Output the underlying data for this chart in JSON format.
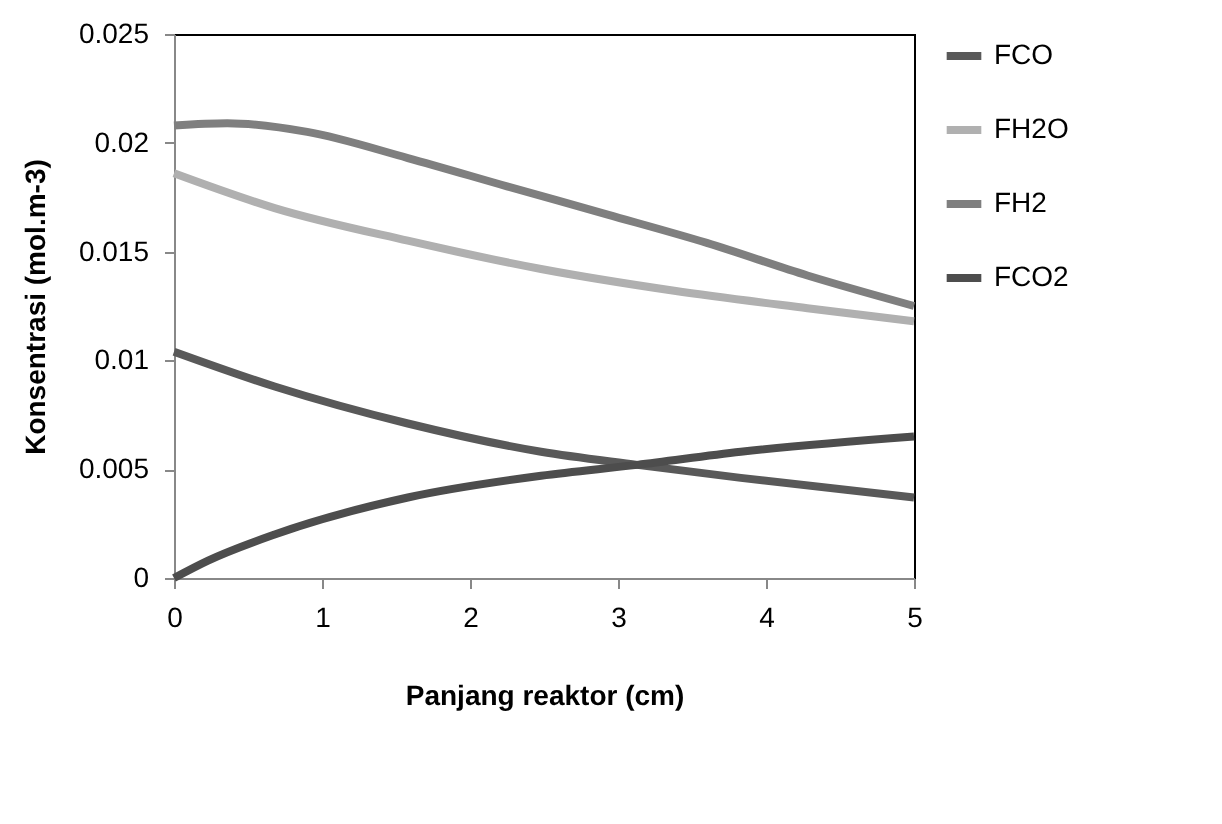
{
  "chart_data": {
    "type": "line",
    "xlabel": "Panjang reaktor (cm)",
    "ylabel": "Konsentrasi (mol.m-3)",
    "xlim": [
      0,
      5
    ],
    "xticks": [
      0,
      1,
      2,
      3,
      4,
      5
    ],
    "ylim": [
      0,
      0.025
    ],
    "yticks": [
      0,
      0.005,
      0.01,
      0.015,
      0.02,
      0.025
    ],
    "grid": false,
    "legend": "right",
    "marker": "none",
    "line_style": "solid",
    "series": [
      {
        "name": "FCO",
        "color": "#595959",
        "x": [
          0,
          0.68,
          1.58,
          2.48,
          3.13,
          3.83,
          5
        ],
        "values": [
          0.0104,
          0.0088,
          0.0071,
          0.0058,
          0.0052,
          0.0046,
          0.0037
        ]
      },
      {
        "name": "FH2O",
        "color": "#b0b0b0",
        "x": [
          0,
          0.68,
          1.58,
          2.48,
          3.38,
          4.28,
          5
        ],
        "values": [
          0.0186,
          0.017,
          0.0155,
          0.0142,
          0.0132,
          0.0124,
          0.0118
        ]
      },
      {
        "name": "FH2",
        "color": "#7f7f7f",
        "x": [
          0,
          0.36,
          0.9,
          1.58,
          2.25,
          2.93,
          3.6,
          4.28,
          5
        ],
        "values": [
          0.0208,
          0.0209,
          0.0205,
          0.0193,
          0.018,
          0.0167,
          0.0154,
          0.0139,
          0.0125
        ]
      },
      {
        "name": "FCO2",
        "color": "#4d4d4d",
        "x": [
          0,
          0.23,
          0.68,
          1.58,
          2.48,
          3.13,
          3.83,
          5
        ],
        "values": [
          0,
          0.0008,
          0.002,
          0.0037,
          0.0047,
          0.0052,
          0.0058,
          0.0065
        ]
      }
    ]
  }
}
